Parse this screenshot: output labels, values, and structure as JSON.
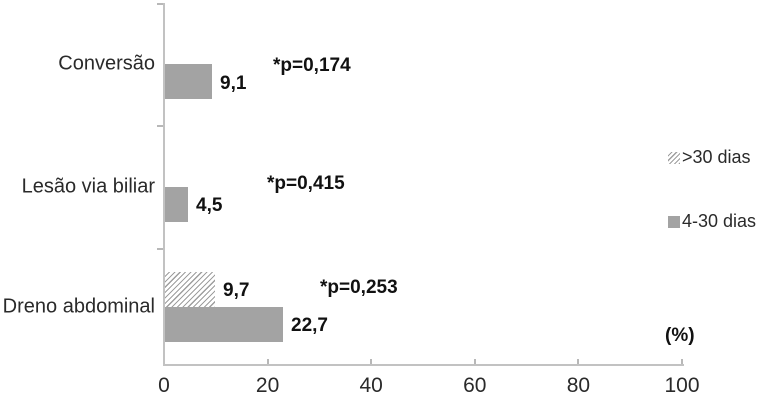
{
  "chart_data": {
    "type": "bar",
    "orientation": "horizontal",
    "title": "",
    "xlabel": "(%)",
    "ylabel": "",
    "xlim": [
      0,
      100
    ],
    "xticks": [
      "0",
      "20",
      "40",
      "60",
      "80",
      "100"
    ],
    "xtick_values": [
      0,
      20,
      40,
      60,
      80,
      100
    ],
    "grid": false,
    "legend_position": "right",
    "categories": [
      "Conversão",
      "Lesão via biliar",
      "Dreno abdominal"
    ],
    "series": [
      {
        "name": ">30 dias",
        "style": "hatched",
        "values": [
          null,
          null,
          9.7
        ],
        "value_labels": [
          null,
          null,
          "9,7"
        ]
      },
      {
        "name": "4-30 dias",
        "style": "solid",
        "values": [
          9.1,
          4.5,
          22.7
        ],
        "value_labels": [
          "9,1",
          "4,5",
          "22,7"
        ]
      }
    ],
    "annotations": [
      {
        "category": "Conversão",
        "text": "*p=0,174"
      },
      {
        "category": "Lesão via biliar",
        "text": "*p=0,415"
      },
      {
        "category": "Dreno abdominal",
        "text": "*p=0,253"
      }
    ],
    "colors": {
      "solid_bar": "#a3a3a3",
      "hatch_line": "#9e9e9e",
      "axis": "#c2c2c2",
      "text": "#2a2a2a",
      "bold_text": "#111111"
    }
  }
}
